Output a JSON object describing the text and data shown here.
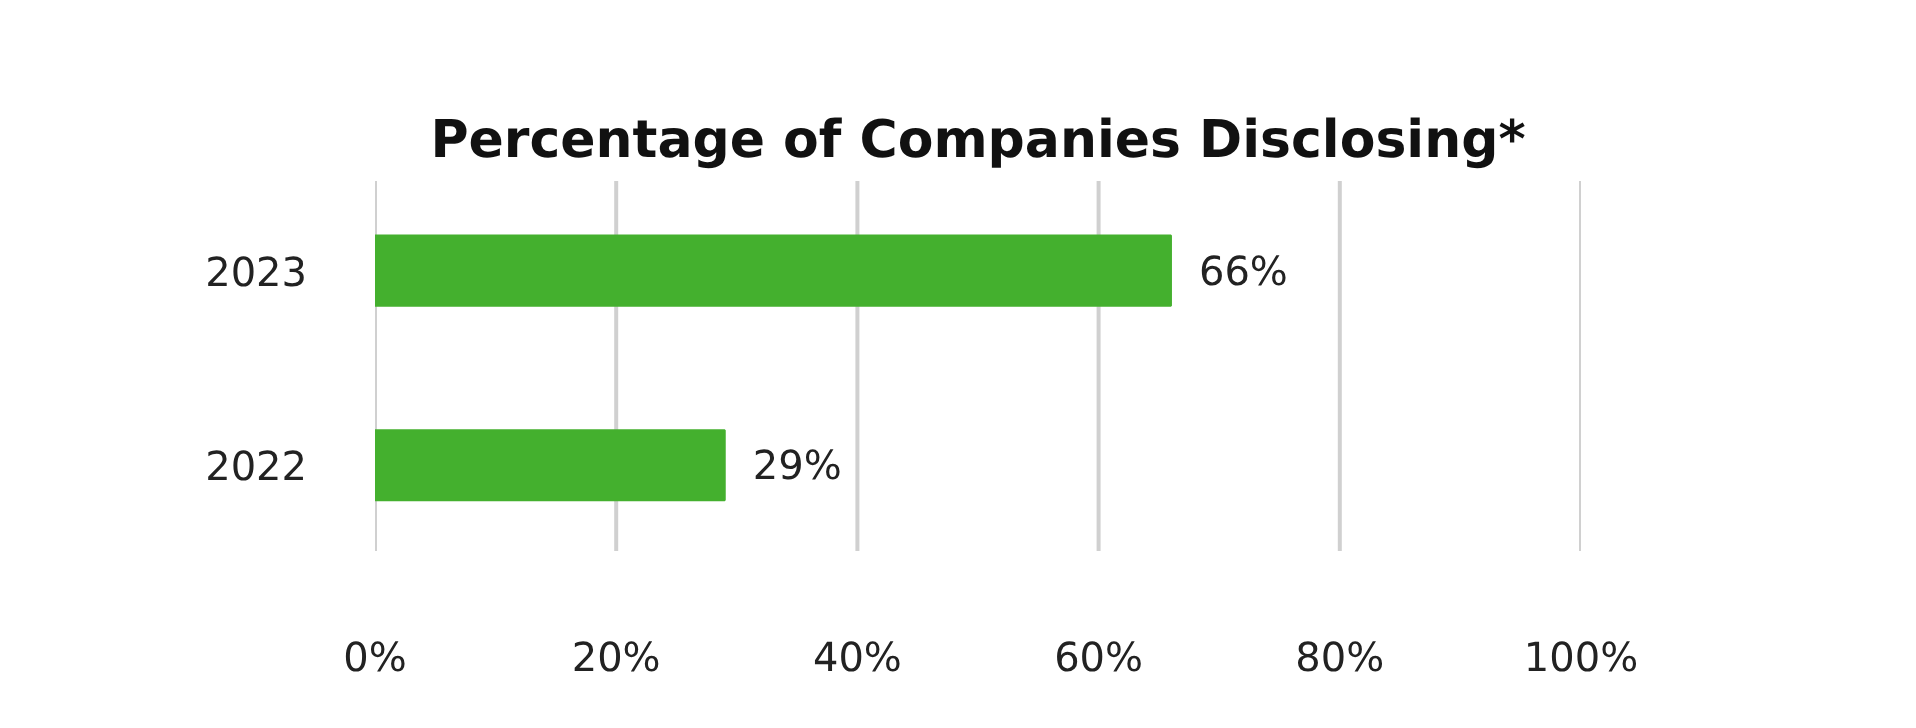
{
  "chart_data": {
    "type": "bar",
    "orientation": "horizontal",
    "title": "Percentage of Companies Disclosing*",
    "categories": [
      "2023",
      "2022"
    ],
    "values": [
      66,
      29
    ],
    "color": "#44b02e",
    "value_labels": [
      "66%",
      "29%"
    ],
    "xlim": [
      0,
      100
    ],
    "xticks": [
      {
        "value": 0,
        "label": "0%"
      },
      {
        "value": 20,
        "label": "20%"
      },
      {
        "value": 40,
        "label": "40%"
      },
      {
        "value": 60,
        "label": "60%"
      },
      {
        "value": 80,
        "label": "80%"
      },
      {
        "value": 100,
        "label": "100%"
      }
    ],
    "grid": "x"
  }
}
